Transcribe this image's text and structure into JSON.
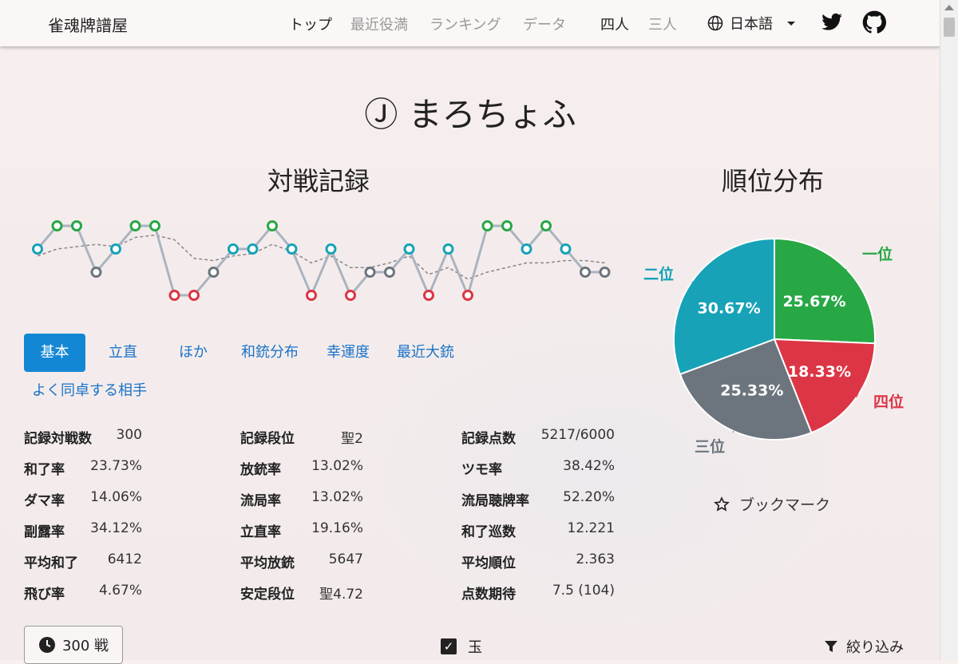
{
  "navbar": {
    "brand": "雀魂牌譜屋",
    "items": [
      "トップ",
      "最近役満",
      "ランキング",
      "データ"
    ],
    "modes": [
      "四人",
      "三人"
    ],
    "language": "日本語"
  },
  "player": {
    "name": "Ⓙ まろちょふ"
  },
  "record_title": "対戦記録",
  "rank_title": "順位分布",
  "tabs": [
    "基本",
    "立直",
    "ほか",
    "和銃分布",
    "幸運度",
    "最近大銃",
    "よく同卓する相手"
  ],
  "stats": [
    [
      {
        "label": "記録対戦数",
        "value": "300"
      },
      {
        "label": "和了率",
        "value": "23.73%"
      },
      {
        "label": "ダマ率",
        "value": "14.06%"
      },
      {
        "label": "副露率",
        "value": "34.12%"
      },
      {
        "label": "平均和了",
        "value": "6412"
      },
      {
        "label": "飛び率",
        "value": "4.67%"
      }
    ],
    [
      {
        "label": "記録段位",
        "value": "聖2"
      },
      {
        "label": "放銃率",
        "value": "13.02%"
      },
      {
        "label": "流局率",
        "value": "13.02%"
      },
      {
        "label": "立直率",
        "value": "19.16%"
      },
      {
        "label": "平均放銃",
        "value": "5647"
      },
      {
        "label": "安定段位",
        "value": "聖4.72"
      }
    ],
    [
      {
        "label": "記録点数",
        "value": "5217/6000"
      },
      {
        "label": "ツモ率",
        "value": "38.42%"
      },
      {
        "label": "流局聴牌率",
        "value": "52.20%"
      },
      {
        "label": "和了巡数",
        "value": "12.221"
      },
      {
        "label": "平均順位",
        "value": "2.363"
      },
      {
        "label": "点数期待",
        "value": "7.5 (104)"
      }
    ]
  ],
  "footer": {
    "games_label": "300 戦",
    "checkbox_label": "玉",
    "filter_label": "絞り込み"
  },
  "bookmark_label": "ブックマーク",
  "rank_colors": {
    "1": "#28a745",
    "2": "#17a2b8",
    "3": "#6c757d",
    "4": "#dc3545"
  },
  "chart_data": [
    {
      "type": "line",
      "series": [
        {
          "name": "",
          "values": [
            2,
            1,
            1,
            3,
            2,
            1,
            1,
            4,
            4,
            3,
            2,
            2,
            1,
            2,
            4,
            2,
            4,
            3,
            3,
            2,
            4,
            2,
            4,
            1,
            1,
            2,
            1,
            2,
            3,
            3
          ]
        },
        {
          "name": "",
          "values": [
            2.3,
            2.0,
            1.9,
            1.8,
            1.9,
            1.5,
            1.4,
            1.6,
            2.4,
            2.5,
            2.3,
            2.2,
            1.8,
            2.1,
            2.6,
            2.3,
            2.8,
            2.8,
            2.6,
            2.3,
            3.1,
            2.8,
            3.3,
            3.0,
            2.8,
            2.6,
            2.6,
            2.5,
            2.5,
            2.6
          ]
        }
      ],
      "ylim": [
        1,
        4
      ],
      "grid": false
    },
    {
      "type": "pie",
      "categories": [
        "一位",
        "四位",
        "三位",
        "二位"
      ],
      "values": [
        25.67,
        18.33,
        25.33,
        30.67
      ],
      "labels": [
        "25.67%",
        "18.33%",
        "25.33%",
        "30.67%"
      ]
    }
  ]
}
